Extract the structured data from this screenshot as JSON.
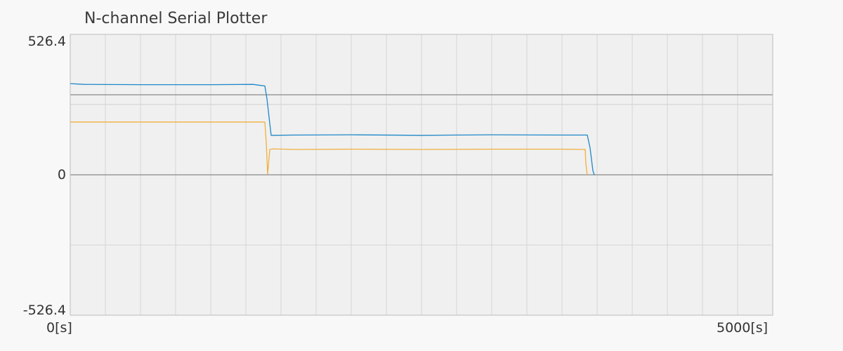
{
  "chart_data": {
    "type": "line",
    "title": "N-channel Serial Plotter",
    "xlabel": "",
    "ylabel": "",
    "xlim": [
      0,
      5000
    ],
    "ylim": [
      -526.4,
      526.4
    ],
    "y_tick_labels": [
      "526.4",
      "0",
      "-526.4"
    ],
    "x_tick_labels": [
      "0[s]",
      "5000[s]"
    ],
    "grid": true,
    "reference_lines": [
      0,
      300
    ],
    "series": [
      {
        "color": "#1e88c8",
        "x": [
          0,
          100,
          500,
          1000,
          1300,
          1385,
          1400,
          1430,
          1600,
          2000,
          2500,
          3000,
          3500,
          3680,
          3700,
          3720,
          3730
        ],
        "y": [
          342,
          339,
          338,
          338,
          339,
          333,
          285,
          148,
          149,
          150,
          148,
          150,
          149,
          149,
          100,
          15,
          0
        ]
      },
      {
        "color": "#f0b040",
        "x": [
          0,
          500,
          1000,
          1385,
          1395,
          1405,
          1420,
          1440,
          1600,
          2000,
          2500,
          3000,
          3500,
          3665,
          3670,
          3680
        ],
        "y": [
          198,
          198,
          198,
          198,
          120,
          2,
          95,
          97,
          95,
          96,
          95,
          96,
          96,
          95,
          40,
          0
        ]
      }
    ]
  }
}
